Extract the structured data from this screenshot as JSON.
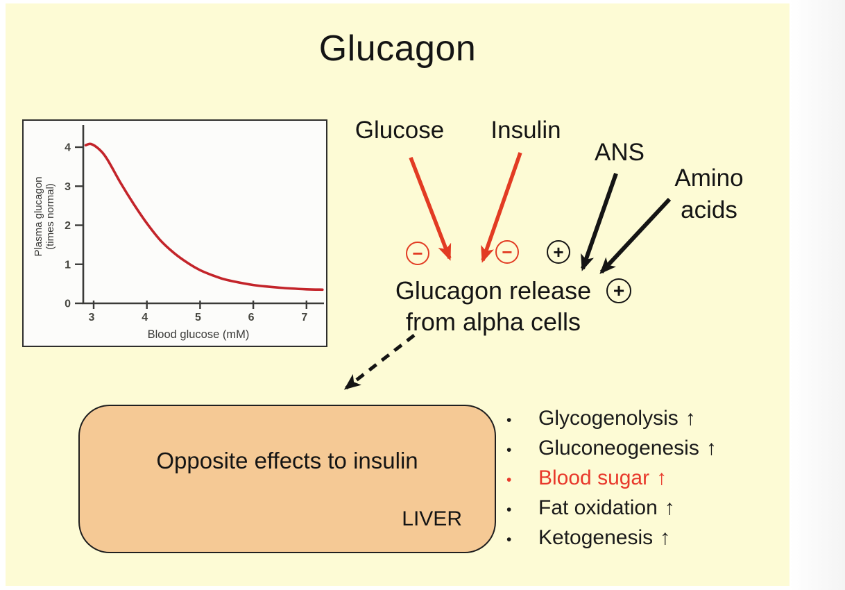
{
  "slide": {
    "title": "Glucagon"
  },
  "colors": {
    "background": "#FDFBD5",
    "red": "#E23B23",
    "ink": "#141414",
    "box_fill": "#F5C995",
    "box_border": "#1f1f1f",
    "curve_red": "#C3242A",
    "axis_gray": "#3a3a38"
  },
  "chart_data": {
    "type": "line",
    "title": "",
    "xlabel": "Blood glucose (mM)",
    "ylabel": "Plasma glucagon (times normal)",
    "ylabel_lines": [
      "Plasma glucagon",
      "(times normal)"
    ],
    "x_ticks": [
      3,
      4,
      5,
      6,
      7
    ],
    "y_ticks": [
      0,
      1,
      2,
      3,
      4
    ],
    "xlim": [
      2.8,
      7.4
    ],
    "ylim": [
      0,
      4.6
    ],
    "grid": false,
    "legend": "none",
    "series": [
      {
        "name": "plasma glucagon vs blood glucose",
        "color": "#C3242A",
        "x": [
          2.85,
          2.95,
          3.1,
          3.25,
          3.5,
          3.75,
          4.0,
          4.25,
          4.5,
          4.75,
          5.0,
          5.25,
          5.5,
          6.0,
          6.5,
          7.0,
          7.3
        ],
        "y": [
          4.05,
          4.08,
          3.95,
          3.7,
          3.1,
          2.55,
          2.05,
          1.62,
          1.3,
          1.05,
          0.85,
          0.71,
          0.6,
          0.47,
          0.4,
          0.36,
          0.35
        ]
      }
    ]
  },
  "diagram": {
    "regulators": [
      {
        "label": "Glucose",
        "sign": "−",
        "effect": "inhibits"
      },
      {
        "label": "Insulin",
        "sign": "−",
        "effect": "inhibits"
      },
      {
        "label": "ANS",
        "sign": "+",
        "effect": "stimulates"
      },
      {
        "label": "Amino acids",
        "sign": "+",
        "effect": "stimulates"
      }
    ],
    "target_line1": "Glucagon release",
    "target_line2": "from alpha cells",
    "target_sign": "+",
    "box_label": "Opposite effects to insulin",
    "box_organ": "LIVER"
  },
  "effects": {
    "bullet": "•",
    "items": [
      {
        "label": "Glycogenolysis",
        "direction": "↑",
        "color": "#1a1a1a"
      },
      {
        "label": "Gluconeogenesis",
        "direction": "↑",
        "color": "#1a1a1a"
      },
      {
        "label": "Blood sugar",
        "direction": "↑",
        "color": "#E8392B"
      },
      {
        "label": "Fat oxidation",
        "direction": "↑",
        "color": "#1a1a1a"
      },
      {
        "label": "Ketogenesis",
        "direction": "↑",
        "color": "#1a1a1a"
      }
    ]
  }
}
